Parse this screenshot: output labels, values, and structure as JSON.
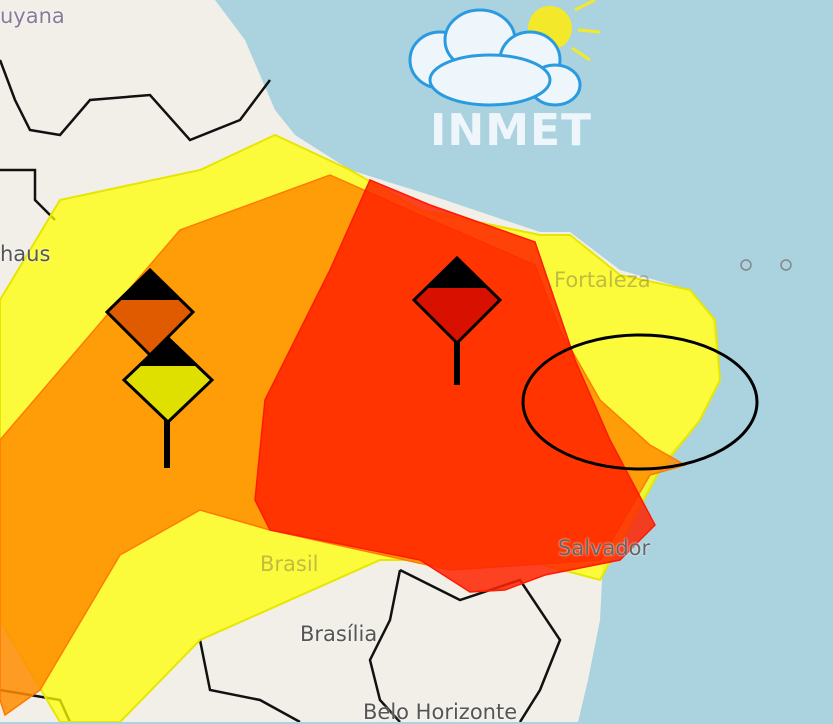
{
  "logo": {
    "text": "INMET",
    "icon": "cloud-sun-icon"
  },
  "labels": {
    "guyana": "uyana",
    "manaus": "haus",
    "fortaleza": "Fortaleza",
    "brasil": "Brasil",
    "salvador": "Salvador",
    "brasilia": "Brasília",
    "belo_horizonte": "Belo Horizonte"
  },
  "alerts": [
    {
      "level": "yellow",
      "color": "#ffff00",
      "icon": "warning-sign-yellow-icon"
    },
    {
      "level": "orange",
      "color": "#ff8c00",
      "icon": "warning-sign-orange-icon"
    },
    {
      "level": "red",
      "color": "#ff2200",
      "icon": "warning-sign-red-icon"
    }
  ],
  "colors": {
    "ocean": "#aad3df",
    "land": "#f2efe9",
    "highlight_ellipse": "#000000"
  }
}
